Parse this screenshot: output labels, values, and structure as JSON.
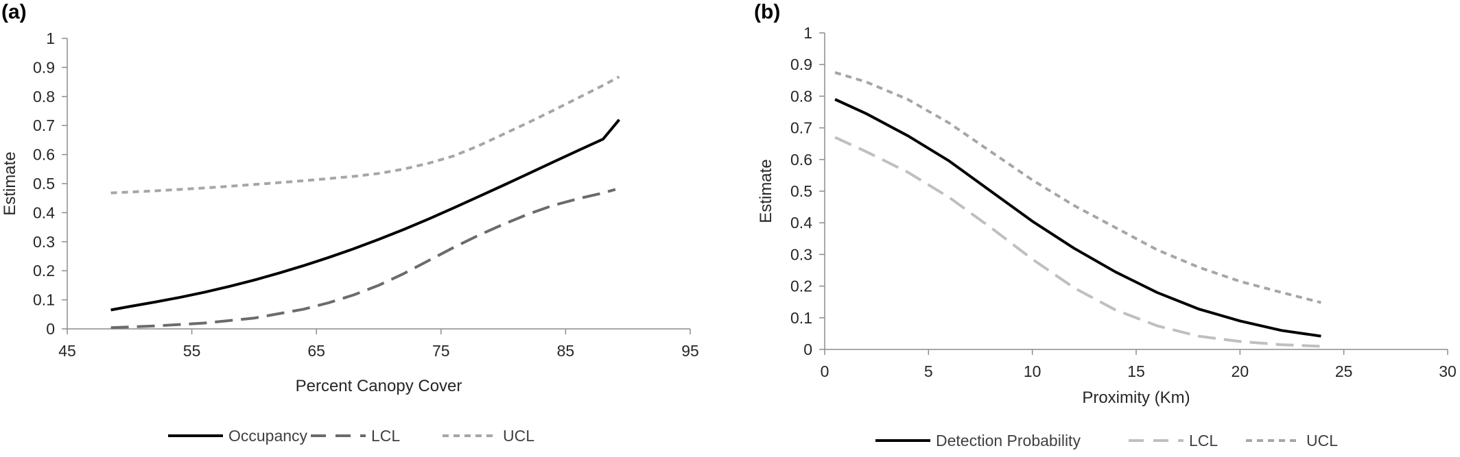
{
  "chart_data": [
    {
      "panel_label": "(a)",
      "type": "line",
      "xlabel": "Percent Canopy Cover",
      "ylabel": "Estimate",
      "xlim": [
        45,
        95
      ],
      "ylim": [
        0,
        1
      ],
      "x_ticks": [
        "45",
        "55",
        "65",
        "75",
        "85",
        "95"
      ],
      "y_ticks": [
        "0",
        "0.1",
        "0.2",
        "0.3",
        "0.4",
        "0.5",
        "0.6",
        "0.7",
        "0.8",
        "0.9",
        "1"
      ],
      "grid": false,
      "legend_position": "bottom",
      "series": [
        {
          "name": "Occupancy",
          "color": "#000000",
          "style": "solid",
          "x": [
            48.5,
            50,
            52,
            54,
            56,
            58,
            60,
            62,
            64,
            66,
            68,
            70,
            72,
            74,
            76,
            78,
            80,
            82,
            84,
            86,
            88,
            89.3
          ],
          "y": [
            0.065,
            0.077,
            0.092,
            0.108,
            0.126,
            0.146,
            0.168,
            0.192,
            0.218,
            0.246,
            0.276,
            0.308,
            0.342,
            0.378,
            0.416,
            0.455,
            0.494,
            0.534,
            0.574,
            0.614,
            0.653,
            0.72
          ]
        },
        {
          "name": "LCL",
          "color": "#6b6b6b",
          "style": "long-dash",
          "x": [
            48.5,
            52,
            56,
            60,
            64,
            66,
            68,
            70,
            72,
            74,
            76,
            78,
            80,
            82,
            84,
            86,
            88,
            89
          ],
          "y": [
            0.004,
            0.01,
            0.02,
            0.037,
            0.068,
            0.09,
            0.117,
            0.15,
            0.19,
            0.235,
            0.28,
            0.322,
            0.36,
            0.395,
            0.425,
            0.448,
            0.468,
            0.48
          ]
        },
        {
          "name": "UCL",
          "color": "#a6a6a6",
          "style": "short-dash",
          "x": [
            48.5,
            52,
            56,
            60,
            64,
            68,
            70,
            72,
            74,
            76,
            78,
            80,
            82,
            84,
            86,
            88,
            89.3
          ],
          "y": [
            0.468,
            0.475,
            0.485,
            0.497,
            0.51,
            0.525,
            0.535,
            0.55,
            0.57,
            0.595,
            0.63,
            0.67,
            0.71,
            0.752,
            0.795,
            0.838,
            0.868
          ]
        }
      ]
    },
    {
      "panel_label": "(b)",
      "type": "line",
      "xlabel": "Proximity (Km)",
      "ylabel": "Estimate",
      "xlim": [
        0,
        30
      ],
      "ylim": [
        0,
        1
      ],
      "x_ticks": [
        "0",
        "5",
        "10",
        "15",
        "20",
        "25",
        "30"
      ],
      "y_ticks": [
        "0",
        "0.1",
        "0.2",
        "0.3",
        "0.4",
        "0.5",
        "0.6",
        "0.7",
        "0.8",
        "0.9",
        "1"
      ],
      "grid": false,
      "legend_position": "bottom",
      "series": [
        {
          "name": "Detection Probability",
          "color": "#000000",
          "style": "solid",
          "x": [
            0.5,
            2,
            4,
            6,
            8,
            10,
            12,
            14,
            16,
            18,
            20,
            22,
            23.9
          ],
          "y": [
            0.79,
            0.745,
            0.675,
            0.595,
            0.5,
            0.405,
            0.32,
            0.245,
            0.18,
            0.128,
            0.09,
            0.06,
            0.042
          ]
        },
        {
          "name": "LCL",
          "color": "#bfbfbf",
          "style": "long-dash",
          "x": [
            0.5,
            2,
            4,
            6,
            8,
            10,
            12,
            14,
            16,
            18,
            20,
            22,
            23.9
          ],
          "y": [
            0.67,
            0.625,
            0.56,
            0.48,
            0.385,
            0.285,
            0.195,
            0.125,
            0.075,
            0.042,
            0.025,
            0.015,
            0.01
          ]
        },
        {
          "name": "UCL",
          "color": "#a6a6a6",
          "style": "short-dash",
          "x": [
            0.5,
            2,
            4,
            6,
            8,
            10,
            12,
            14,
            16,
            18,
            20,
            22,
            23.9
          ],
          "y": [
            0.875,
            0.845,
            0.79,
            0.715,
            0.625,
            0.535,
            0.455,
            0.385,
            0.315,
            0.26,
            0.215,
            0.18,
            0.148
          ]
        }
      ]
    }
  ]
}
